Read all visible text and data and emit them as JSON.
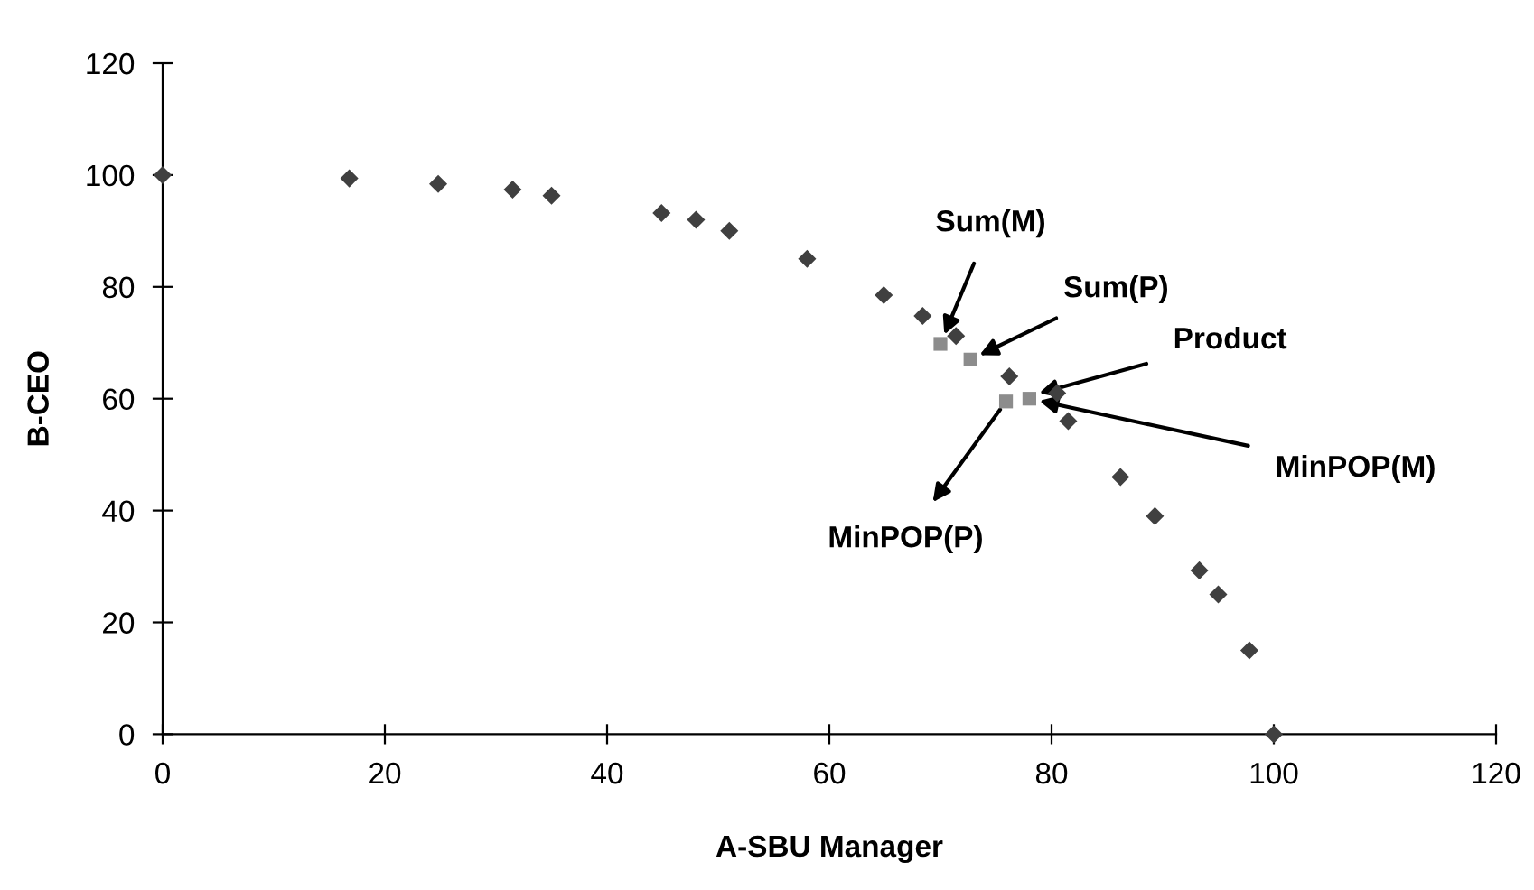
{
  "chart_data": {
    "type": "scatter",
    "xlabel": "A-SBU Manager",
    "ylabel": "B-CEO",
    "xlim": [
      0,
      120
    ],
    "ylim": [
      0,
      120
    ],
    "xticks": [
      0,
      20,
      40,
      60,
      80,
      100,
      120
    ],
    "yticks": [
      0,
      20,
      40,
      60,
      80,
      100,
      120
    ],
    "grid": false,
    "legend": false,
    "series": [
      {
        "color": "#404040",
        "marker": "diamond",
        "x": [
          0,
          16.8,
          24.8,
          31.5,
          35,
          44.9,
          48,
          51,
          58,
          64.9,
          68.4,
          71.4,
          76.2,
          80.5,
          81.5,
          86.2,
          89.3,
          93.3,
          95,
          97.8,
          100
        ],
        "values": [
          100,
          99.4,
          98.4,
          97.4,
          96.3,
          93.2,
          92,
          90,
          85,
          78.5,
          74.8,
          71.2,
          64,
          61,
          56,
          46,
          39,
          29.3,
          25,
          15,
          0
        ]
      },
      {
        "color": "#8c8c8c",
        "marker": "square",
        "x": [
          70,
          72.7,
          75.9,
          78
        ],
        "values": [
          69.8,
          67,
          59.5,
          60
        ]
      }
    ],
    "annotations": [
      {
        "text": "Sum(M)",
        "x": 70,
        "y": 69.8
      },
      {
        "text": "Sum(P)",
        "x": 72.7,
        "y": 67
      },
      {
        "text": "Product",
        "x": 78,
        "y": 60.5
      },
      {
        "text": "MinPOP(M)",
        "x": 78,
        "y": 60
      },
      {
        "text": "MinPOP(P)",
        "x": 75.9,
        "y": 59.5
      }
    ]
  }
}
